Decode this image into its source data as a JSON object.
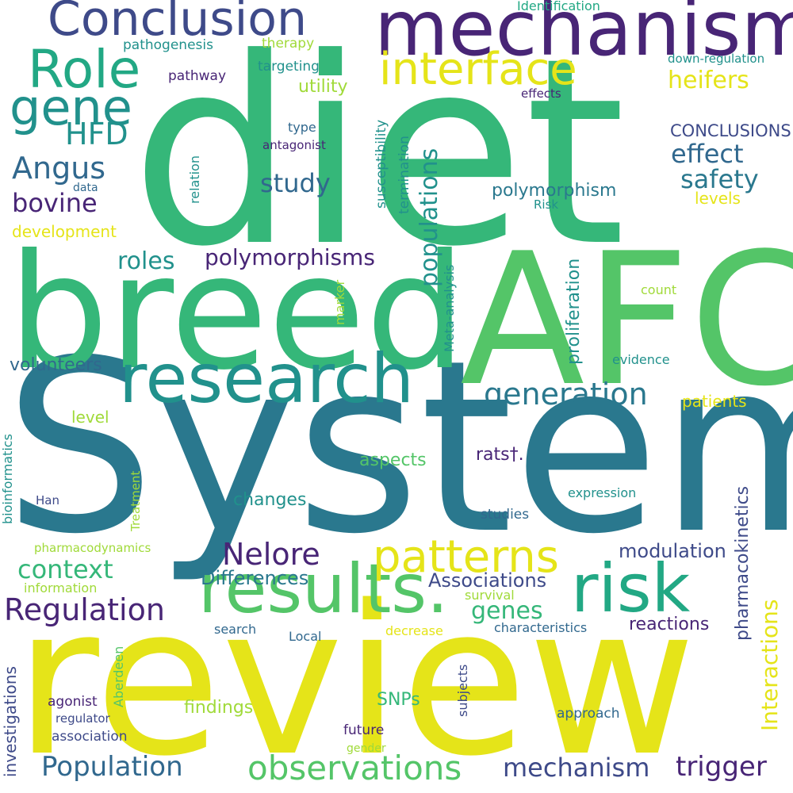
{
  "words": {
    "diet": "diet",
    "system": "System",
    "review": "review",
    "afc": "AFC",
    "breed": "breed",
    "mechanisms": "mechanisms",
    "research": "research",
    "results": "results.",
    "risk": "risk",
    "conclusion": "Conclusion",
    "role": "Role",
    "gene": "gene",
    "interface": "interface",
    "patterns": "patterns",
    "observations": "observations",
    "regulation": "Regulation",
    "nelore": "Nelore",
    "generation": "generation",
    "population": "Population",
    "trigger": "trigger",
    "mechanism": "mechanism",
    "context": "context",
    "hfd": "HFD",
    "angus": "Angus",
    "bovine": "bovine",
    "study": "study",
    "safety": "safety",
    "effect": "effect",
    "heifers": "heifers",
    "polymorphisms": "polymorphisms",
    "populations": "populations",
    "roles": "roles",
    "interactions": "Interactions",
    "genes": "genes",
    "associations": "Associations",
    "differences": "Differences",
    "modulation": "modulation",
    "polymorphism": "polymorphism",
    "utility": "utility",
    "conclusions": "CONCLUSIONS",
    "volunteers": "volunteers",
    "changes": "changes",
    "proliferation": "proliferation",
    "pharmacokinetics": "pharmacokinetics",
    "reactions": "reactions",
    "aspects": "aspects",
    "rats": "rats†.",
    "findings": "findings",
    "snps": "SNPs",
    "development": "development",
    "level": "level",
    "levels": "levels",
    "patients": "patients",
    "investigations": "investigations",
    "targeting": "targeting",
    "pathogenesis": "pathogenesis",
    "therapy": "therapy",
    "pathway": "pathway",
    "identification": "Identification",
    "down_regulation": "down-regulation",
    "effects": "effects",
    "type": "type",
    "antagonist": "antagonist",
    "susceptibility": "susceptibility",
    "termination": "termination",
    "relation": "relation",
    "data": "data",
    "risk_small": "Risk",
    "meta_analysis": "Meta-analysis",
    "marker": "marker",
    "count": "count",
    "evidence": "evidence",
    "bioinformatics": "bioinformatics",
    "treatment": "Treatment",
    "han": "Han",
    "expression": "expression",
    "studies": "studies",
    "pharmacodynamics": "pharmacodynamics",
    "information": "information",
    "survival": "survival",
    "search": "search",
    "local": "Local",
    "decrease": "decrease",
    "characteristics": "characteristics",
    "aberdeen": "Aberdeen",
    "agonist": "agonist",
    "regulator": "regulator",
    "association": "association",
    "subjects": "subjects",
    "approach": "approach",
    "future": "future",
    "gender": "gender"
  },
  "colors": {
    "dark_purple": "#482576",
    "purple": "#3e4a89",
    "blue": "#31688e",
    "teal_blue": "#2a788e",
    "teal": "#21918c",
    "green_teal": "#22a884",
    "green": "#35b779",
    "light_green": "#54c568",
    "yellow_green": "#a0da39",
    "yellow": "#e5e419"
  }
}
